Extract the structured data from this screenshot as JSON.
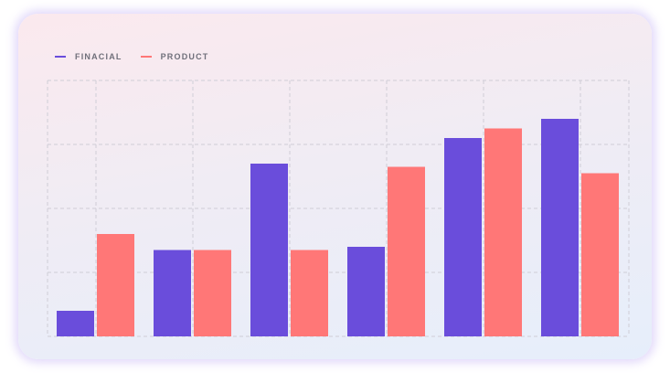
{
  "colors": {
    "financial": "#6a4ddb",
    "product": "#ff7777",
    "grid": "#cfcdd6"
  },
  "chart_data": {
    "type": "bar",
    "categories": [
      "",
      "",
      "",
      "",
      "",
      ""
    ],
    "series": [
      {
        "name": "FINACIAL",
        "values": [
          8,
          27,
          54,
          28,
          62,
          68
        ]
      },
      {
        "name": "PRODUCT",
        "values": [
          32,
          27,
          27,
          53,
          65,
          51
        ]
      }
    ],
    "ylim": [
      0,
      80
    ],
    "grid": true,
    "legend": "top-left"
  }
}
